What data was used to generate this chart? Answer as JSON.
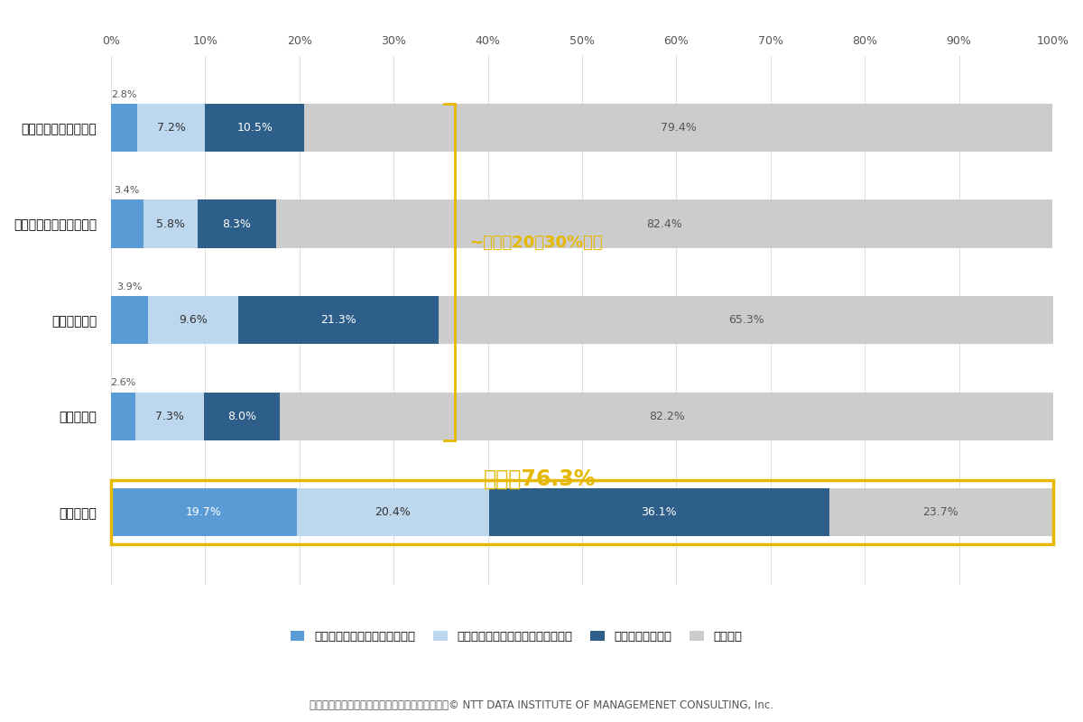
{
  "categories": [
    "孤独・孤立対策推進法",
    "孤独・孤立対策強化月間",
    "地域共生社会",
    "社会的処方",
    "子ども食堂"
  ],
  "series": {
    "知っており、概要を説明できる": [
      2.8,
      3.4,
      3.9,
      2.6,
      19.7
    ],
    "知っているが、概要は説明できない": [
      7.2,
      5.8,
      9.6,
      7.3,
      20.4
    ],
    "聞いたことがある": [
      10.5,
      8.3,
      21.3,
      8.0,
      36.1
    ],
    "知らない": [
      79.4,
      82.4,
      65.3,
      82.2,
      23.7
    ]
  },
  "colors": {
    "知っており、概要を説明できる": "#5b9bd5",
    "知っているが、概要は説明できない": "#bdd7ee",
    "聞いたことがある": "#2e5f8a",
    "知らない": "#cccccc"
  },
  "annotation_text_20_30": "~認知度20～30%程度",
  "annotation_text_76": "認知度76.3%",
  "xlabel_top_ticks": [
    0,
    10,
    20,
    30,
    40,
    50,
    60,
    70,
    80,
    90,
    100
  ],
  "source_text": "「孤独・孤立対策に関する法律や対策の認知度」© NTT DATA INSTITUTE OF MANAGEMENET CONSULTING, Inc.",
  "background_color": "#ffffff",
  "bar_height": 0.5,
  "highlight_row": 4,
  "highlight_color": "#e6b800",
  "legend_info": [
    [
      "知っており、概要を説明できる",
      "#5b9bd5"
    ],
    [
      "知っているが、概要は説明できない",
      "#bdd7ee"
    ],
    [
      "聞いたことがある",
      "#2e5f8a"
    ],
    [
      "知らない",
      "#cccccc"
    ]
  ]
}
